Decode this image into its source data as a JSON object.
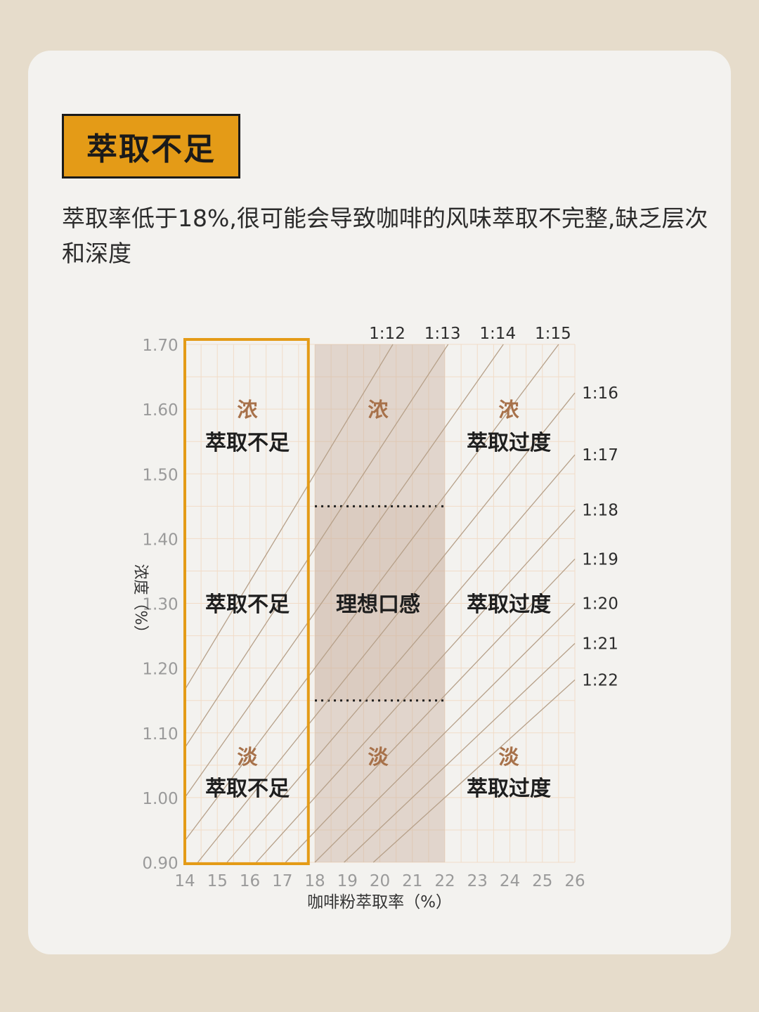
{
  "header": {
    "badge": "萃取不足",
    "description": "萃取率低于18%,很可能会导致咖啡的风味萃取不完整,缺乏层次和深度"
  },
  "colors": {
    "accent": "#e49b17",
    "ideal_zone": "#c9ad9b",
    "line": "#b6a089",
    "brown_text": "#a7714a"
  },
  "chart_data": {
    "type": "scatter",
    "xlabel": "咖啡粉萃取率（%）",
    "ylabel": "浓度（%）",
    "x_ticks": [
      "14",
      "15",
      "16",
      "17",
      "18",
      "19",
      "20",
      "21",
      "22",
      "23",
      "24",
      "25",
      "26"
    ],
    "y_ticks": [
      "1.70",
      "1.60",
      "1.50",
      "1.40",
      "1.30",
      "1.20",
      "1.10",
      "1.00",
      "0.90"
    ],
    "xlim": [
      14,
      26
    ],
    "ylim": [
      0.9,
      1.7
    ],
    "ratio_labels": [
      "1:12",
      "1:13",
      "1:14",
      "1:15",
      "1:16",
      "1:17",
      "1:18",
      "1:19",
      "1:20",
      "1:21",
      "1:22"
    ],
    "ratio_lines": [
      12,
      13,
      14,
      15,
      16,
      17,
      18,
      19,
      20,
      21,
      22
    ],
    "highlight_range_x": [
      14,
      17.8
    ],
    "ideal_x": [
      18,
      22
    ],
    "ideal_y": [
      1.15,
      1.45
    ],
    "zones": [
      {
        "strength": "浓",
        "name": "萃取不足"
      },
      {
        "strength": "浓",
        "name": ""
      },
      {
        "strength": "浓",
        "name": "萃取过度"
      },
      {
        "strength": "",
        "name": "萃取不足"
      },
      {
        "strength": "",
        "name": "理想口感"
      },
      {
        "strength": "",
        "name": "萃取过度"
      },
      {
        "strength": "淡",
        "name": "萃取不足"
      },
      {
        "strength": "淡",
        "name": ""
      },
      {
        "strength": "淡",
        "name": "萃取过度"
      }
    ]
  }
}
